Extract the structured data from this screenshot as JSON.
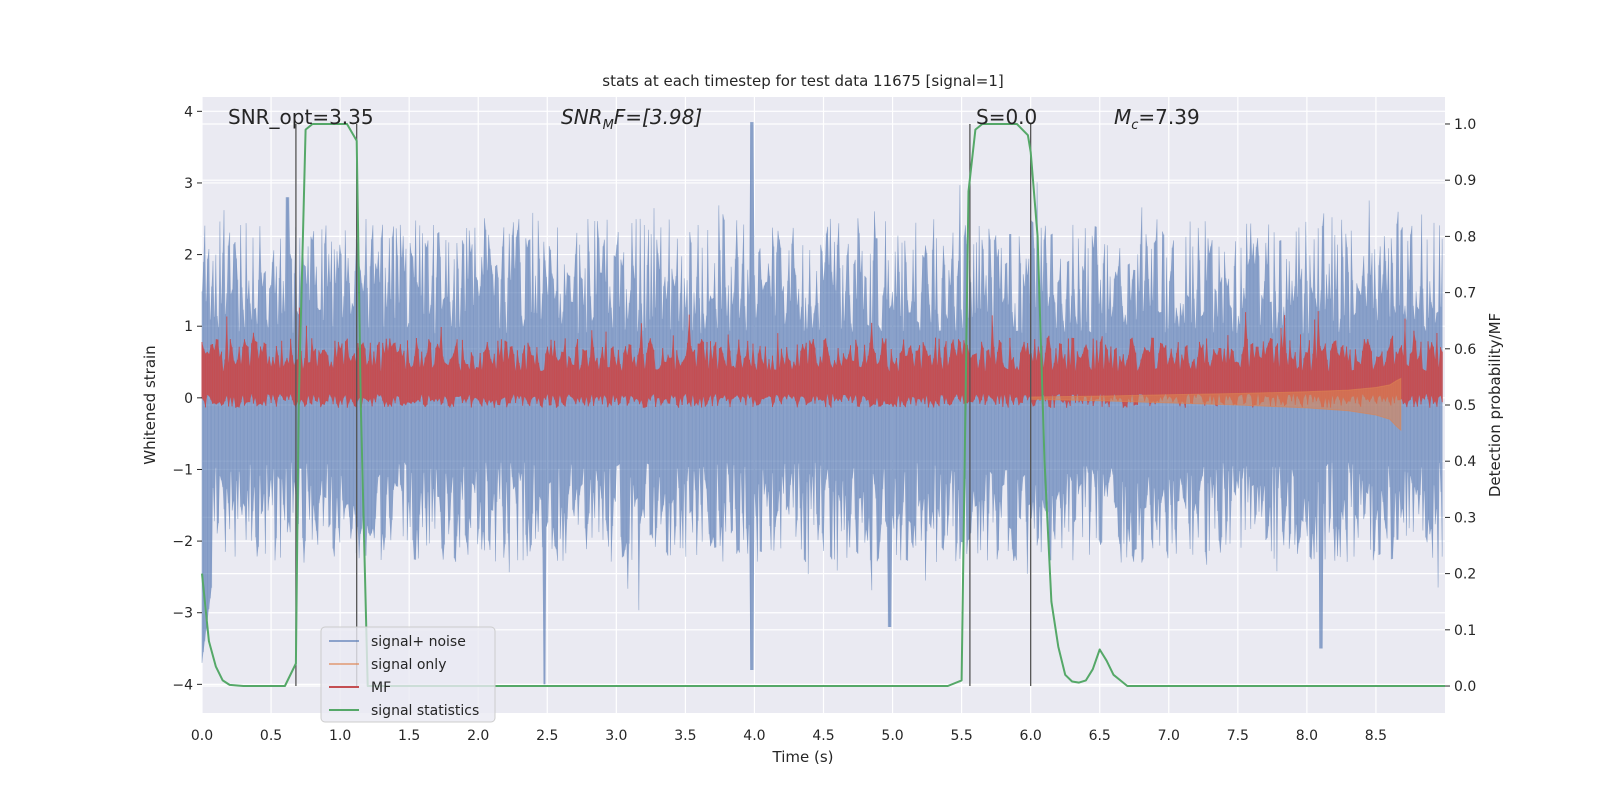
{
  "chart_data": {
    "type": "line",
    "title": "stats at each timestep for test data 11675 [signal=1]",
    "xlabel": "Time (s)",
    "ylabel_left": "Whitened strain",
    "ylabel_right": "Detection probability/MF",
    "xlim": [
      0.0,
      9.0
    ],
    "ylim_left": [
      -4.4,
      4.2
    ],
    "ylim_right": [
      -0.048,
      1.048
    ],
    "x_ticks": [
      "0.0",
      "0.5",
      "1.0",
      "1.5",
      "2.0",
      "2.5",
      "3.0",
      "3.5",
      "4.0",
      "4.5",
      "5.0",
      "5.5",
      "6.0",
      "6.5",
      "7.0",
      "7.5",
      "8.0",
      "8.5"
    ],
    "y_ticks_left": [
      "−4",
      "−3",
      "−2",
      "−1",
      "0",
      "1",
      "2",
      "3",
      "4"
    ],
    "y_ticks_right": [
      "0.0",
      "0.1",
      "0.2",
      "0.3",
      "0.4",
      "0.5",
      "0.6",
      "0.7",
      "0.8",
      "0.9",
      "1.0"
    ],
    "grid": true,
    "legend_position": "lower-left",
    "annotations": {
      "snr_opt": "SNR_opt=3.35",
      "snr_mf_italic": "SNR",
      "snr_mf_sub": "M",
      "snr_mf_rest": "F=[3.98]",
      "s_value": "S=0.0",
      "mc_prefix": "M",
      "mc_sub": "c",
      "mc_rest": "=7.39"
    },
    "noise_envelope": {
      "description_values": "approximate min/max of whitened strain",
      "typical_max": 2.2,
      "typical_min": -1.9,
      "peak_max": [
        [
          3.98,
          3.85
        ],
        [
          2.48,
          1.2
        ],
        [
          0.62,
          2.8
        ]
      ],
      "peak_min": [
        [
          2.48,
          -4.0
        ],
        [
          3.98,
          -3.8
        ],
        [
          8.1,
          -3.5
        ],
        [
          4.98,
          -3.2
        ]
      ]
    },
    "series": [
      {
        "name": "signal+ noise",
        "color": "#4c72b0",
        "kind": "noise-band"
      },
      {
        "name": "signal only",
        "color": "#dd8452",
        "kind": "chirp",
        "x": [
          6.0,
          6.5,
          7.0,
          7.5,
          8.0,
          8.3,
          8.5,
          8.6,
          8.65,
          8.68
        ],
        "amplitude": [
          0.02,
          0.04,
          0.07,
          0.1,
          0.14,
          0.18,
          0.24,
          0.3,
          0.4,
          0.45
        ]
      },
      {
        "name": "MF",
        "color": "#c44e52",
        "kind": "noise-band-right",
        "typical_max_right": 0.6,
        "typical_min_right": 0.5
      },
      {
        "name": "signal statistics",
        "color": "#55a868",
        "axis": "right",
        "x": [
          0.0,
          0.05,
          0.1,
          0.15,
          0.2,
          0.3,
          0.5,
          0.6,
          0.68,
          0.7,
          0.75,
          0.8,
          1.0,
          1.05,
          1.12,
          1.15,
          1.2,
          1.5,
          2.0,
          2.5,
          3.0,
          3.5,
          4.0,
          4.5,
          5.0,
          5.4,
          5.5,
          5.55,
          5.6,
          5.65,
          5.9,
          5.98,
          6.0,
          6.05,
          6.1,
          6.15,
          6.2,
          6.25,
          6.3,
          6.35,
          6.4,
          6.45,
          6.5,
          6.55,
          6.6,
          6.65,
          6.7,
          6.8,
          7.0,
          7.5,
          8.0,
          8.5,
          9.0
        ],
        "y": [
          0.2,
          0.08,
          0.035,
          0.01,
          0.002,
          0.0,
          0.0,
          0.0,
          0.04,
          0.5,
          0.99,
          1.0,
          1.0,
          1.0,
          0.97,
          0.5,
          0.0,
          0.0,
          0.0,
          0.0,
          0.0,
          0.0,
          0.0,
          0.0,
          0.0,
          0.0,
          0.01,
          0.88,
          0.99,
          1.0,
          1.0,
          0.98,
          0.95,
          0.8,
          0.4,
          0.15,
          0.07,
          0.02,
          0.008,
          0.006,
          0.01,
          0.03,
          0.065,
          0.045,
          0.02,
          0.01,
          0.0,
          0.0,
          0.0,
          0.0,
          0.0,
          0.0,
          0.0
        ]
      },
      {
        "name": "markers",
        "color": "#555555",
        "kind": "vertical-lines",
        "x": [
          0.68,
          1.12,
          5.56,
          6.0
        ]
      }
    ]
  }
}
